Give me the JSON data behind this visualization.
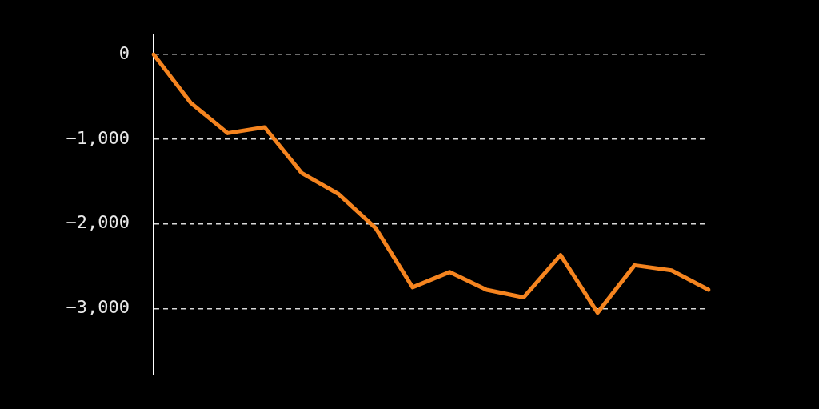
{
  "chart_data": {
    "type": "line",
    "categories": [
      null,
      null,
      null,
      null,
      null,
      null,
      null,
      null,
      null,
      null,
      null,
      null,
      null,
      null,
      null,
      null
    ],
    "series": [
      {
        "color": "#f5841f",
        "values": [
          0,
          -570,
          -930,
          -860,
          -1400,
          -1650,
          -2050,
          -2750,
          -2570,
          -2780,
          -2870,
          -2370,
          -3050,
          -2490,
          -2550,
          -2780
        ]
      }
    ],
    "ylim": [
      -3780,
      235
    ],
    "yticks": [
      {
        "value": 0,
        "label": "0"
      },
      {
        "value": -1000,
        "label": "−1,000"
      },
      {
        "value": -2000,
        "label": "−2,000"
      },
      {
        "value": -3000,
        "label": "−3,000"
      }
    ],
    "grid": "y",
    "tick_labels": "y"
  }
}
